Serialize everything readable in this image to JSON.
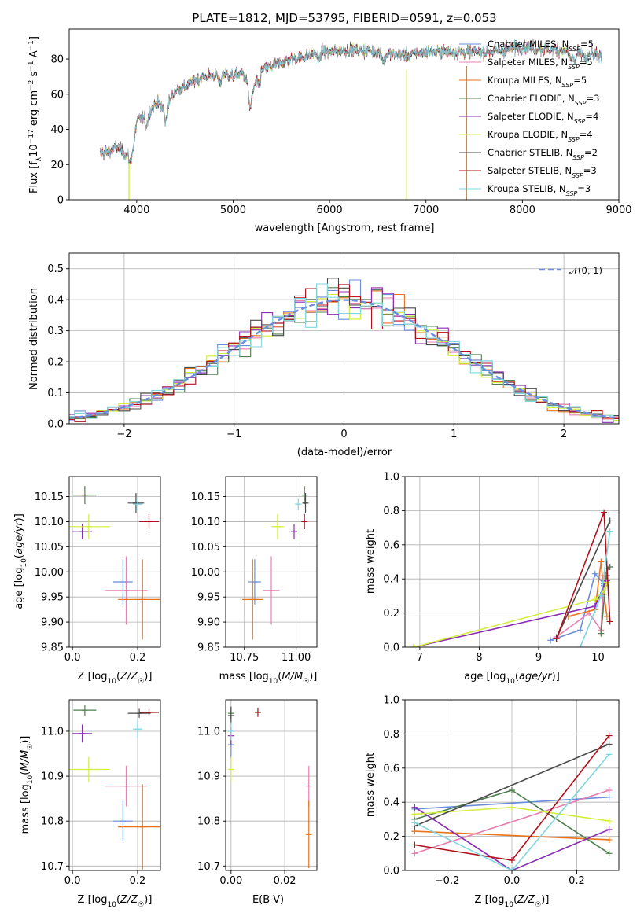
{
  "colors": [
    "#6a8edb",
    "#e87fb0",
    "#e8741c",
    "#4f7f4f",
    "#8a2db5",
    "#d4ee3c",
    "#4a4a4a",
    "#b0101c",
    "#7fd6df"
  ],
  "chart_data": [
    {
      "id": "spectrum",
      "type": "line",
      "title": "PLATE=1812, MJD=53795, FIBERID=0591, z=0.053",
      "xlabel": "wavelength [Angstrom, rest frame]",
      "ylabel": "Flux [f_λ 10⁻¹⁷ erg cm⁻² s⁻¹ A⁻¹]",
      "xlim": [
        3300,
        9000
      ],
      "ylim": [
        0,
        97
      ],
      "xticks": [
        "4000",
        "5000",
        "6000",
        "7000",
        "8000",
        "9000"
      ],
      "yticks": [
        "0",
        "20",
        "40",
        "60",
        "80"
      ],
      "grid": false,
      "legend_position": "right",
      "series": [
        {
          "name": "Chabrier MILES, N_SSP=5"
        },
        {
          "name": "Salpeter MILES, N_SSP=5"
        },
        {
          "name": "Kroupa MILES, N_SSP=5"
        },
        {
          "name": "Chabrier ELODIE, N_SSP=3"
        },
        {
          "name": "Salpeter ELODIE, N_SSP=4"
        },
        {
          "name": "Kroupa ELODIE, N_SSP=4"
        },
        {
          "name": "Chabrier STELIB, N_SSP=2"
        },
        {
          "name": "Salpeter STELIB, N_SSP=3"
        },
        {
          "name": "Kroupa STELIB, N_SSP=3"
        }
      ],
      "continuum": {
        "x": [
          3600,
          3700,
          3800,
          3900,
          4000,
          4100,
          4200,
          4300,
          4400,
          4500,
          4600,
          4700,
          4800,
          4900,
          5000,
          5100,
          5200,
          5300,
          5400,
          5500,
          5600,
          5700,
          5800,
          5900,
          6000,
          6200,
          6400,
          6600,
          6800,
          7000,
          7200,
          7400,
          7600,
          7800,
          8000,
          8200,
          8400,
          8600,
          8800
        ],
        "y": [
          26,
          27,
          30,
          25,
          45,
          48,
          55,
          52,
          62,
          64,
          68,
          70,
          71,
          72,
          70,
          72,
          62,
          74,
          76,
          78,
          80,
          81,
          82,
          85,
          84,
          85,
          85,
          83,
          82,
          84,
          84,
          84,
          84,
          85,
          87,
          86,
          85,
          83,
          82
        ]
      },
      "spikes": [
        {
          "x": 3920,
          "color": "#d4ee3c"
        },
        {
          "x": 6800,
          "color": "#d4ee3c"
        },
        {
          "x": 7420,
          "color": "#e8741c"
        }
      ]
    },
    {
      "id": "residuals",
      "type": "area",
      "xlabel": "(data-model)/error",
      "ylabel": "Normed distribution",
      "xlim": [
        -2.5,
        2.5
      ],
      "ylim": [
        0,
        0.55
      ],
      "xticks": [
        "−2",
        "−1",
        "0",
        "1",
        "2"
      ],
      "yticks": [
        "0.0",
        "0.1",
        "0.2",
        "0.3",
        "0.4",
        "0.5"
      ],
      "grid": true,
      "bin_width": 0.1,
      "legend": "𝒩(0, 1)",
      "legend_position": "top-right"
    },
    {
      "id": "age-vs-Z",
      "type": "scatter",
      "xlabel": "Z [log₁₀(Z/Z☉)]",
      "ylabel": "age  [log₁₀(age/yr)]",
      "xlim": [
        -0.01,
        0.27
      ],
      "ylim": [
        9.85,
        10.19
      ],
      "xticks": [
        "0.0",
        "0.2"
      ],
      "yticks": [
        "9.85",
        "9.90",
        "9.95",
        "10.00",
        "10.05",
        "10.10",
        "10.15"
      ],
      "points": [
        {
          "x": 0.155,
          "y": 9.98,
          "xerr": 0.03,
          "yerr": 0.045
        },
        {
          "x": 0.165,
          "y": 9.963,
          "xerr": 0.065,
          "yerr": 0.068
        },
        {
          "x": 0.215,
          "y": 9.945,
          "xerr": 0.075,
          "yerr": 0.08
        },
        {
          "x": 0.038,
          "y": 10.153,
          "xerr": 0.035,
          "yerr": 0.018
        },
        {
          "x": 0.03,
          "y": 10.08,
          "xerr": 0.03,
          "yerr": 0.015
        },
        {
          "x": 0.05,
          "y": 10.09,
          "xerr": 0.065,
          "yerr": 0.025
        },
        {
          "x": 0.195,
          "y": 10.137,
          "xerr": 0.025,
          "yerr": 0.02
        },
        {
          "x": 0.235,
          "y": 10.1,
          "xerr": 0.03,
          "yerr": 0.015
        },
        {
          "x": 0.2,
          "y": 10.135,
          "xerr": 0.015,
          "yerr": 0.012
        }
      ]
    },
    {
      "id": "age-vs-mass",
      "type": "scatter",
      "xlabel": "mass [log₁₀(M/M☉)]",
      "ylabel": "",
      "xlim": [
        10.66,
        11.1
      ],
      "ylim": [
        9.85,
        10.19
      ],
      "xticks": [
        "10.75",
        "11.00"
      ],
      "yticks": [
        "9.85",
        "9.90",
        "9.95",
        "10.00",
        "10.05",
        "10.10",
        "10.15"
      ],
      "points": [
        {
          "x": 10.8,
          "y": 9.98,
          "xerr": 0.03,
          "yerr": 0.045
        },
        {
          "x": 10.88,
          "y": 9.963,
          "xerr": 0.04,
          "yerr": 0.068
        },
        {
          "x": 10.79,
          "y": 9.945,
          "xerr": 0.05,
          "yerr": 0.08
        },
        {
          "x": 11.04,
          "y": 10.153,
          "xerr": 0.01,
          "yerr": 0.018
        },
        {
          "x": 10.99,
          "y": 10.08,
          "xerr": 0.015,
          "yerr": 0.015
        },
        {
          "x": 10.91,
          "y": 10.09,
          "xerr": 0.03,
          "yerr": 0.025
        },
        {
          "x": 11.045,
          "y": 10.137,
          "xerr": 0.01,
          "yerr": 0.02
        },
        {
          "x": 11.04,
          "y": 10.1,
          "xerr": 0.008,
          "yerr": 0.015
        },
        {
          "x": 11.01,
          "y": 10.135,
          "xerr": 0.015,
          "yerr": 0.012
        }
      ]
    },
    {
      "id": "weight-vs-age",
      "type": "line",
      "xlabel": "age  [log₁₀(age/yr)]",
      "ylabel": "mass weight",
      "xlim": [
        6.75,
        10.35
      ],
      "ylim": [
        0,
        1
      ],
      "xticks": [
        "7",
        "8",
        "9",
        "10"
      ],
      "yticks": [
        "0.0",
        "0.2",
        "0.4",
        "0.6",
        "0.8",
        "1.0"
      ],
      "grid": true,
      "series": [
        {
          "x": [
            9.2,
            9.7,
            9.95,
            10.1,
            10.15
          ],
          "y": [
            0.04,
            0.1,
            0.43,
            0.37,
            0.42
          ]
        },
        {
          "x": [
            9.3,
            9.85,
            10.05,
            10.1,
            10.2
          ],
          "y": [
            0.06,
            0.2,
            0.1,
            0.42,
            0.47
          ]
        },
        {
          "x": [
            9.5,
            9.95,
            10.05,
            10.1,
            10.15
          ],
          "y": [
            0.18,
            0.22,
            0.5,
            0.31,
            0.18
          ]
        },
        {
          "x": [
            10.05,
            10.15,
            10.2
          ],
          "y": [
            0.08,
            0.46,
            0.47
          ]
        },
        {
          "x": [
            6.9,
            9.95,
            10.1,
            10.15
          ],
          "y": [
            0.0,
            0.24,
            0.36,
            0.39
          ]
        },
        {
          "x": [
            6.9,
            9.95,
            10.1,
            10.15
          ],
          "y": [
            0.0,
            0.28,
            0.33,
            0.38
          ]
        },
        {
          "x": [
            9.3,
            10.2
          ],
          "y": [
            0.05,
            0.74
          ]
        },
        {
          "x": [
            9.3,
            10.1,
            10.2
          ],
          "y": [
            0.05,
            0.79,
            0.15
          ]
        },
        {
          "x": [
            9.7,
            10.05,
            10.2
          ],
          "y": [
            0.0,
            0.3,
            0.68
          ]
        }
      ]
    },
    {
      "id": "mass-vs-Z",
      "type": "scatter",
      "xlabel": "Z [log₁₀(Z/Z☉)]",
      "ylabel": "mass [log₁₀(M/M☉)]",
      "xlim": [
        -0.01,
        0.27
      ],
      "ylim": [
        10.69,
        11.07
      ],
      "xticks": [
        "0.0",
        "0.2"
      ],
      "yticks": [
        "10.7",
        "10.8",
        "10.9",
        "11.0"
      ],
      "points": [
        {
          "x": 0.155,
          "y": 10.8,
          "xerr": 0.03,
          "yerr": 0.045
        },
        {
          "x": 0.165,
          "y": 10.878,
          "xerr": 0.065,
          "yerr": 0.045
        },
        {
          "x": 0.215,
          "y": 10.787,
          "xerr": 0.075,
          "yerr": 0.095
        },
        {
          "x": 0.038,
          "y": 11.047,
          "xerr": 0.035,
          "yerr": 0.012
        },
        {
          "x": 0.03,
          "y": 10.995,
          "xerr": 0.03,
          "yerr": 0.02
        },
        {
          "x": 0.05,
          "y": 10.915,
          "xerr": 0.065,
          "yerr": 0.028
        },
        {
          "x": 0.205,
          "y": 11.04,
          "xerr": 0.035,
          "yerr": 0.01
        },
        {
          "x": 0.235,
          "y": 11.042,
          "xerr": 0.03,
          "yerr": 0.008
        },
        {
          "x": 0.2,
          "y": 11.005,
          "xerr": 0.015,
          "yerr": 0.02
        }
      ]
    },
    {
      "id": "mass-vs-ebv",
      "type": "scatter",
      "xlabel": "E(B-V)",
      "ylabel": "",
      "xlim": [
        -0.002,
        0.032
      ],
      "ylim": [
        10.69,
        11.07
      ],
      "xticks": [
        "0.00",
        "0.02"
      ],
      "yticks": [
        "10.7",
        "10.8",
        "10.9",
        "11.0"
      ],
      "points": [
        {
          "x": 0.0,
          "y": 10.97,
          "xerr": 0.0,
          "yerr": 0.03
        },
        {
          "x": 0.029,
          "y": 10.878,
          "xerr": 0.0,
          "yerr": 0.045
        },
        {
          "x": 0.029,
          "y": 10.77,
          "xerr": 0.0,
          "yerr": 0.075
        },
        {
          "x": 0.0,
          "y": 11.04,
          "xerr": 0.0,
          "yerr": 0.012
        },
        {
          "x": 0.0,
          "y": 10.99,
          "xerr": 0.0,
          "yerr": 0.02
        },
        {
          "x": 0.0,
          "y": 10.915,
          "xerr": 0.0,
          "yerr": 0.028
        },
        {
          "x": 0.0,
          "y": 11.035,
          "xerr": 0.0,
          "yerr": 0.02
        },
        {
          "x": 0.01,
          "y": 11.042,
          "xerr": 0.0,
          "yerr": 0.01
        },
        {
          "x": 0.0,
          "y": 11.0,
          "xerr": 0.0,
          "yerr": 0.02
        }
      ]
    },
    {
      "id": "weight-vs-Z",
      "type": "line",
      "xlabel": "Z [log₁₀(Z/Z☉)]",
      "ylabel": "mass weight",
      "xlim": [
        -0.33,
        0.33
      ],
      "ylim": [
        0,
        1
      ],
      "xticks": [
        "−0.2",
        "0.0",
        "0.2"
      ],
      "yticks": [
        "0.0",
        "0.2",
        "0.4",
        "0.6",
        "0.8",
        "1.0"
      ],
      "grid": true,
      "series": [
        {
          "x": [
            -0.3,
            0.3
          ],
          "y": [
            0.36,
            0.43
          ]
        },
        {
          "x": [
            -0.3,
            0.3
          ],
          "y": [
            0.1,
            0.47
          ]
        },
        {
          "x": [
            -0.3,
            0.3
          ],
          "y": [
            0.23,
            0.18
          ]
        },
        {
          "x": [
            -0.3,
            0.0,
            0.3
          ],
          "y": [
            0.3,
            0.47,
            0.1
          ]
        },
        {
          "x": [
            -0.3,
            0.0,
            0.3
          ],
          "y": [
            0.37,
            0.0,
            0.24
          ]
        },
        {
          "x": [
            -0.3,
            0.0,
            0.3
          ],
          "y": [
            0.33,
            0.37,
            0.29
          ]
        },
        {
          "x": [
            -0.3,
            0.3
          ],
          "y": [
            0.26,
            0.74
          ]
        },
        {
          "x": [
            -0.3,
            0.0,
            0.3
          ],
          "y": [
            0.15,
            0.06,
            0.79
          ]
        },
        {
          "x": [
            -0.3,
            0.0,
            0.3
          ],
          "y": [
            0.28,
            0.0,
            0.68
          ]
        }
      ]
    }
  ]
}
